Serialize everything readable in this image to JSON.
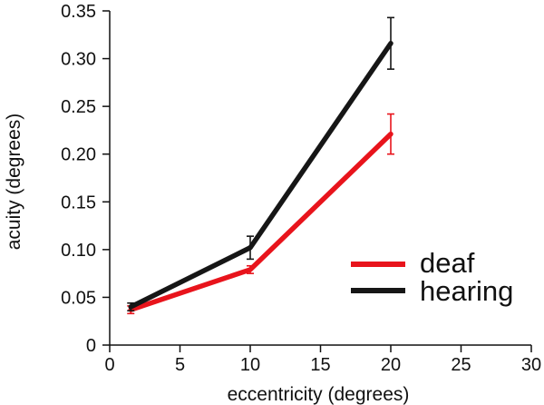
{
  "chart_data": {
    "type": "line",
    "title": "",
    "xlabel": "eccentricity (degrees)",
    "ylabel": "acuity (degrees)",
    "xlim": [
      0,
      30
    ],
    "ylim": [
      0,
      0.35
    ],
    "xticks": [
      0,
      5,
      10,
      15,
      20,
      25,
      30
    ],
    "xtick_labels": [
      "0",
      "5",
      "10",
      "15",
      "20",
      "25",
      "30"
    ],
    "yticks": [
      0,
      0.05,
      0.1,
      0.15,
      0.2,
      0.25,
      0.3,
      0.35
    ],
    "ytick_labels": [
      "0",
      "0.05",
      "0.10",
      "0.15",
      "0.20",
      "0.25",
      "0.30",
      "0.35"
    ],
    "grid": false,
    "legend_position": "center-right",
    "x": [
      1.5,
      10,
      20
    ],
    "series": [
      {
        "name": "deaf",
        "color": "#e8141c",
        "values": [
          0.037,
          0.079,
          0.221
        ],
        "errors": [
          0.004,
          0.004,
          0.021
        ]
      },
      {
        "name": "hearing",
        "color": "#161616",
        "values": [
          0.04,
          0.102,
          0.316
        ],
        "errors": [
          0.004,
          0.012,
          0.027
        ]
      }
    ]
  }
}
